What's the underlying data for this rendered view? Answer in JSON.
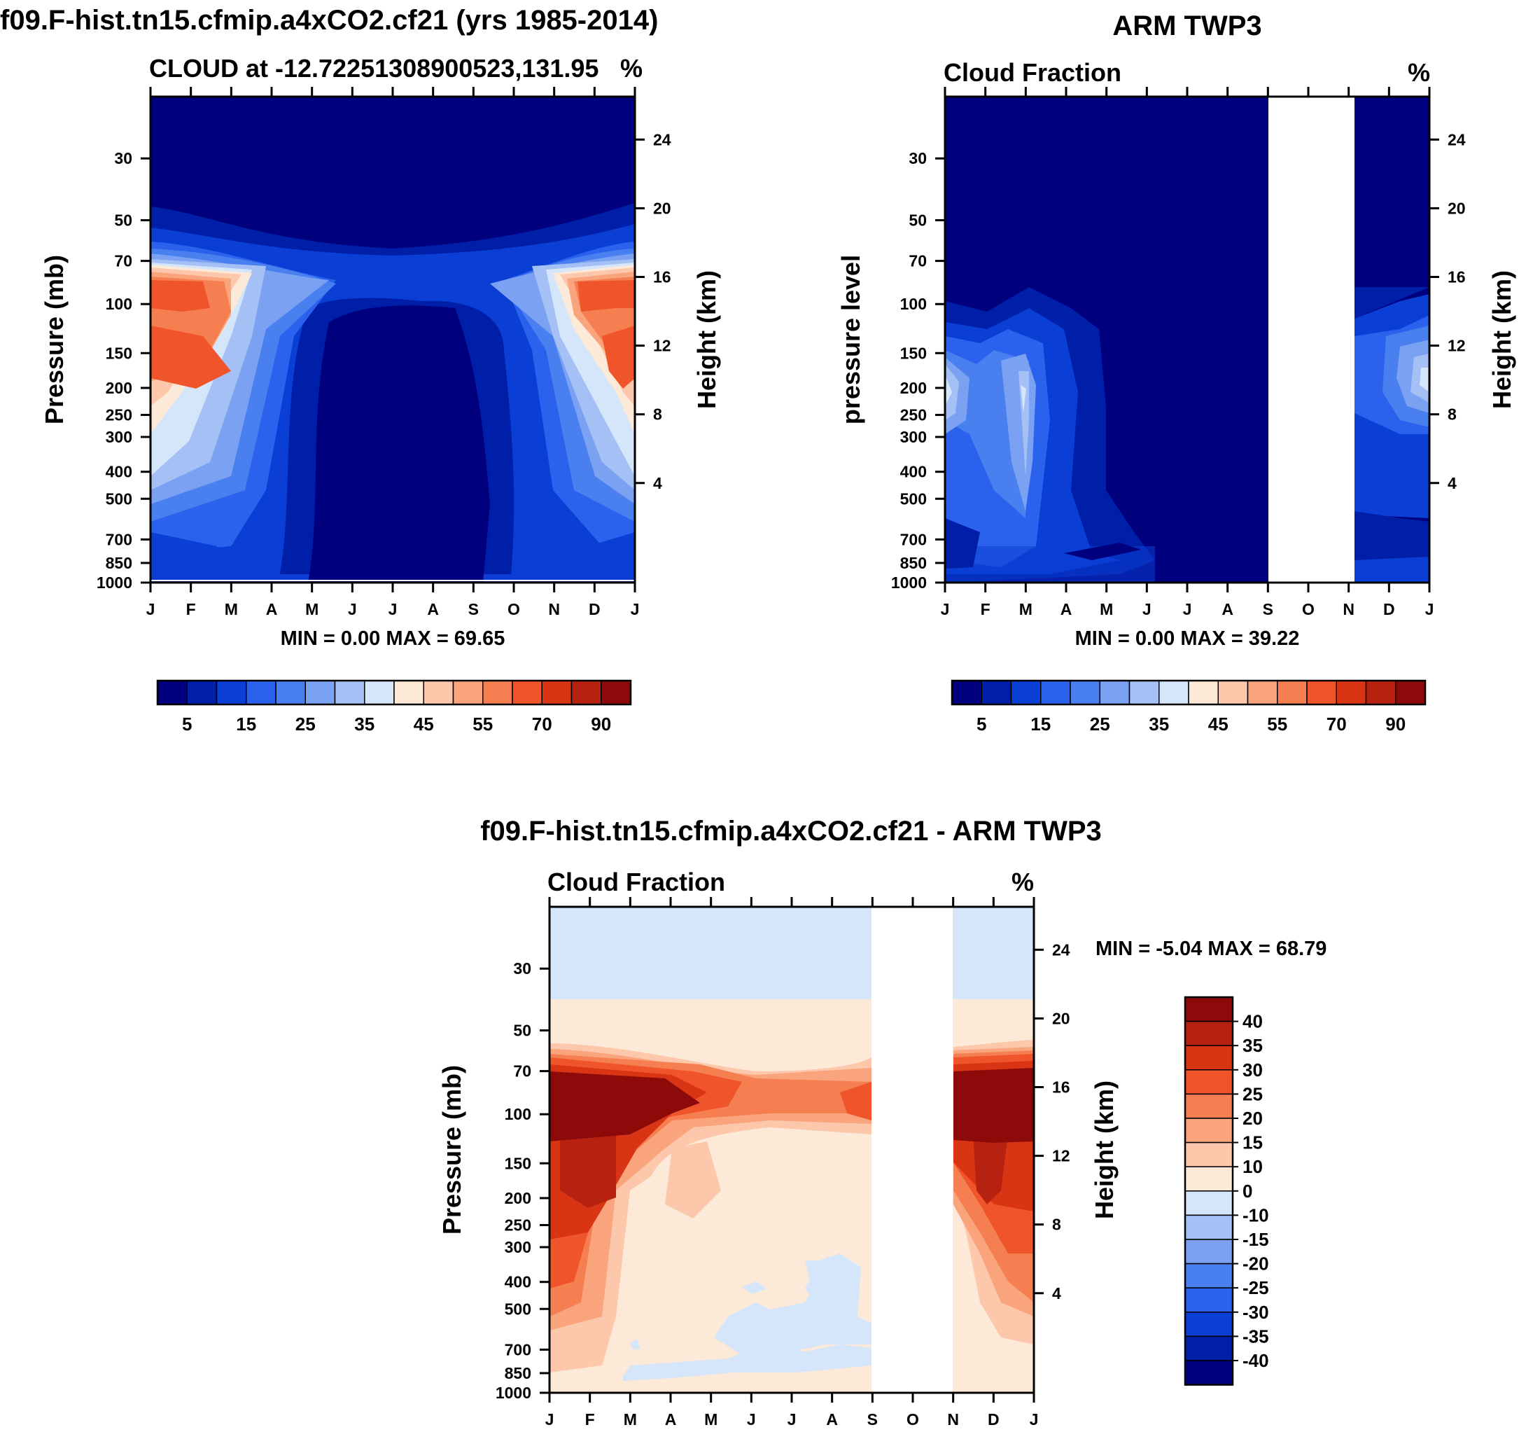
{
  "palette": [
    "#00007f",
    "#001fa8",
    "#0b3ed4",
    "#2a62ee",
    "#4a7ff0",
    "#7aa1f2",
    "#a5c0f5",
    "#d5e6fa",
    "#fde9d8",
    "#fcc7aa",
    "#f9a47c",
    "#f67f52",
    "#f0542a",
    "#d93515",
    "#b72210",
    "#8c0a0a"
  ],
  "chart_data": [
    {
      "id": "model",
      "type": "heatmap",
      "title": "f09.F-hist.tn15.cfmip.a4xCO2.cf21 (yrs 1985-2014)",
      "subtitle_left": "CLOUD at -12.72251308900523,131.95",
      "subtitle_right": "%",
      "ylabel": "Pressure (mb)",
      "ylabel_right": "Height (km)",
      "x_months": [
        "J",
        "F",
        "M",
        "A",
        "M",
        "J",
        "J",
        "A",
        "S",
        "O",
        "N",
        "D",
        "J"
      ],
      "p_levels": [
        30,
        50,
        70,
        100,
        150,
        200,
        250,
        300,
        400,
        500,
        700,
        850,
        1000
      ],
      "height_ticks": [
        24,
        20,
        16,
        12,
        8,
        4
      ],
      "stats": "MIN =   0.00 MAX =  69.65",
      "min": 0.0,
      "max": 69.65,
      "missing_months": [],
      "colorbar": {
        "orientation": "horizontal",
        "labels": [
          "5",
          "15",
          "25",
          "35",
          "45",
          "55",
          "70",
          "90"
        ]
      }
    },
    {
      "id": "obs",
      "type": "heatmap",
      "title": "ARM TWP3",
      "subtitle_left": "Cloud Fraction",
      "subtitle_right": "%",
      "ylabel": "pressure level",
      "ylabel_right": "Height (km)",
      "x_months": [
        "J",
        "F",
        "M",
        "A",
        "M",
        "J",
        "J",
        "A",
        "S",
        "O",
        "N",
        "D",
        "J"
      ],
      "p_levels": [
        30,
        50,
        70,
        100,
        150,
        200,
        250,
        300,
        400,
        500,
        700,
        850,
        1000
      ],
      "height_ticks": [
        24,
        20,
        16,
        12,
        8,
        4
      ],
      "stats": "MIN =   0.00 MAX =  39.22",
      "min": 0.0,
      "max": 39.22,
      "missing_months": [
        "S",
        "O",
        "N"
      ],
      "colorbar": {
        "orientation": "horizontal",
        "labels": [
          "5",
          "15",
          "25",
          "35",
          "45",
          "55",
          "70",
          "90"
        ]
      }
    },
    {
      "id": "diff",
      "type": "heatmap",
      "title": "f09.F-hist.tn15.cfmip.a4xCO2.cf21 - ARM TWP3",
      "subtitle_left": "Cloud Fraction",
      "subtitle_right": "%",
      "ylabel": "Pressure (mb)",
      "ylabel_right": "Height (km)",
      "x_months": [
        "J",
        "F",
        "M",
        "A",
        "M",
        "J",
        "J",
        "A",
        "S",
        "O",
        "N",
        "D",
        "J"
      ],
      "p_levels": [
        30,
        50,
        70,
        100,
        150,
        200,
        250,
        300,
        400,
        500,
        700,
        850,
        1000
      ],
      "height_ticks": [
        24,
        20,
        16,
        12,
        8,
        4
      ],
      "stats": "MIN =  -5.04 MAX =  68.79",
      "min": -5.04,
      "max": 68.79,
      "missing_months": [
        "S",
        "O",
        "N"
      ],
      "colorbar": {
        "orientation": "vertical",
        "labels": [
          "40",
          "35",
          "30",
          "25",
          "20",
          "15",
          "10",
          "0",
          "-10",
          "-15",
          "-20",
          "-25",
          "-30",
          "-35",
          "-40"
        ]
      }
    }
  ]
}
